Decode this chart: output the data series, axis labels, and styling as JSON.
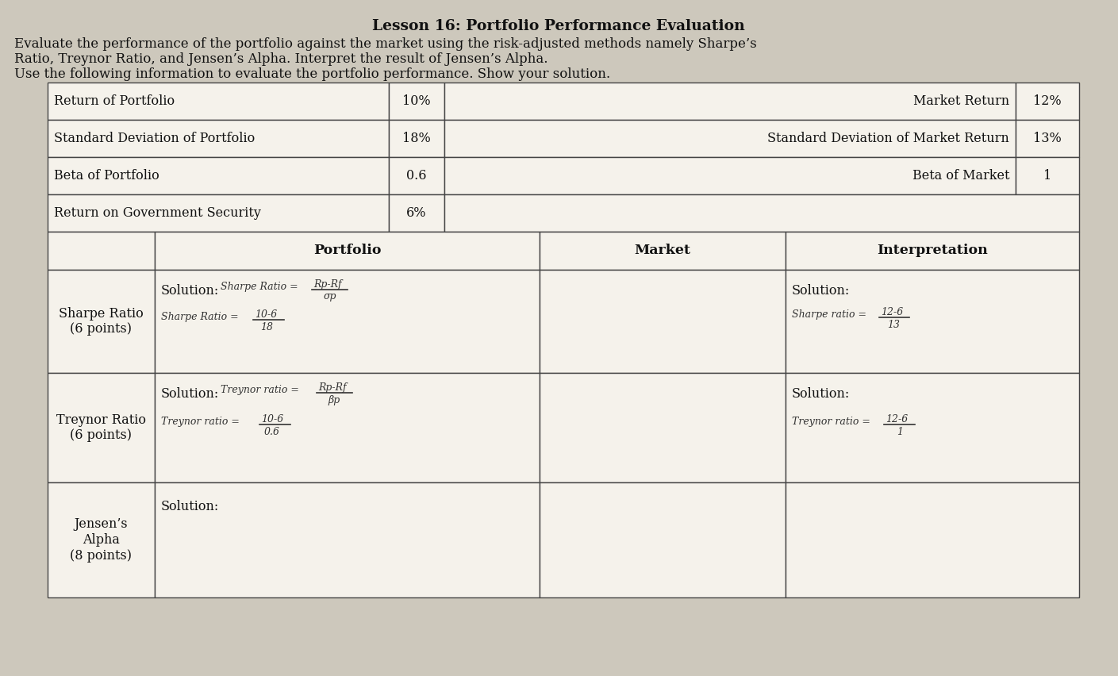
{
  "title": "Lesson 16: Portfolio Performance Evaluation",
  "subtitle_lines": [
    "Evaluate the performance of the portfolio against the market using the risk-adjusted methods namely Sharpe’s",
    "Ratio, Treynor Ratio, and Jensen’s Alpha. Interpret the result of Jensen’s Alpha.",
    "Use the following information to evaluate the portfolio performance. Show your solution."
  ],
  "info_table": {
    "rows": [
      [
        "Return of Portfolio",
        "10%",
        "Market Return",
        "12%"
      ],
      [
        "Standard Deviation of Portfolio",
        "18%",
        "Standard Deviation of Market Return",
        "13%"
      ],
      [
        "Beta of Portfolio",
        "0.6",
        "Beta of Market",
        "1"
      ],
      [
        "Return on Government Security",
        "6%",
        "",
        ""
      ]
    ]
  },
  "main_table": {
    "headers": [
      "",
      "Portfolio",
      "Market",
      "Interpretation"
    ],
    "rows": [
      {
        "label": "Sharpe Ratio\n(6 points)",
        "interpretation": ""
      },
      {
        "label": "Treynor Ratio\n(6 points)",
        "interpretation": ""
      },
      {
        "label": "Jensen’s\nAlpha\n(8 points)",
        "interpretation": ""
      }
    ]
  },
  "bg_color": "#cdc8bc",
  "font_color": "#111111",
  "handwritten_color": "#333333",
  "cell_bg": "#f5f2eb",
  "edge_color": "#444444"
}
